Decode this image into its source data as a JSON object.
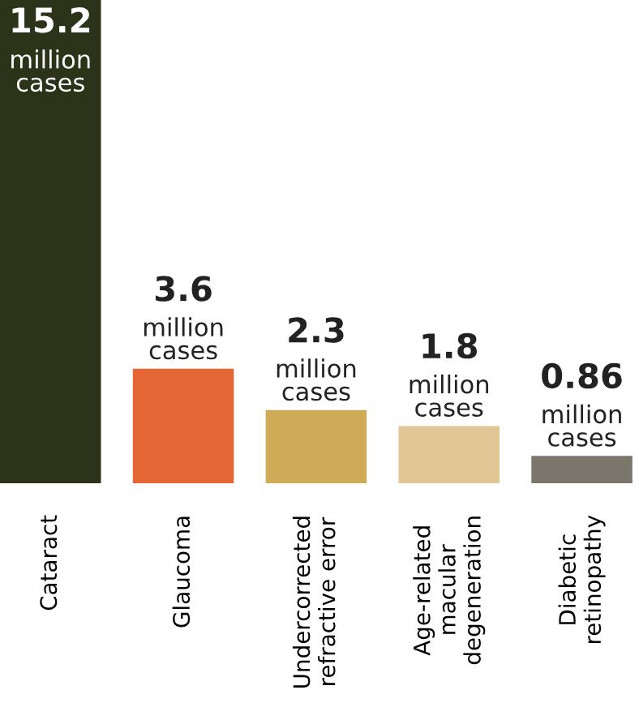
{
  "chart_data": {
    "type": "bar",
    "categories": [
      "Cataract",
      "Glaucoma",
      "Undercorrected\nrefractive error",
      "Age-related\nmacular\ndegeneration",
      "Diabetic\nretinopathy"
    ],
    "values": [
      15.2,
      3.6,
      2.3,
      1.8,
      0.86
    ],
    "colors": [
      "#2d3318",
      "#e36634",
      "#cfaa57",
      "#e0c795",
      "#7b766c"
    ],
    "value_labels": [
      "15.2",
      "3.6",
      "2.3",
      "1.8",
      "0.86"
    ],
    "annotations": [
      {
        "text": "million\ncases",
        "x": "Cataract",
        "y": 15.2
      },
      {
        "text": "million\ncases",
        "x": "Glaucoma",
        "y": 3.6
      },
      {
        "text": "million\ncases",
        "x": "Undercorrected\nrefractive error",
        "y": 2.3
      },
      {
        "text": "million\ncases",
        "x": "Age-related\nmacular\ndegeneration",
        "y": 1.8
      },
      {
        "text": "million\ncases",
        "x": "Diabetic\nretinopathy",
        "y": 0.86
      }
    ],
    "grid": false
  }
}
